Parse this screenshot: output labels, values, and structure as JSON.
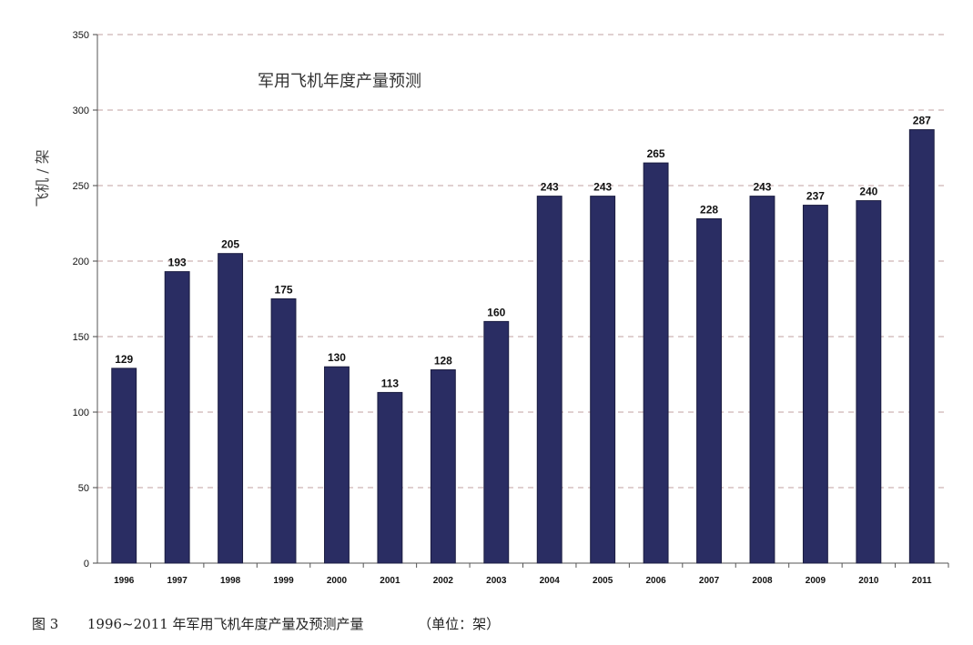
{
  "chart_data": {
    "type": "bar",
    "title": "军用飞机年度产量预测",
    "ylabel": "飞机 / 架",
    "xlabel": "",
    "categories": [
      "1996",
      "1997",
      "1998",
      "1999",
      "2000",
      "2001",
      "2002",
      "2003",
      "2004",
      "2005",
      "2006",
      "2007",
      "2008",
      "2009",
      "2010",
      "2011"
    ],
    "values": [
      129,
      193,
      205,
      175,
      130,
      113,
      128,
      160,
      243,
      243,
      265,
      228,
      243,
      237,
      240,
      287
    ],
    "data_labels": [
      "129",
      "193",
      "205",
      "175",
      "130",
      "113",
      "128",
      "160",
      "243",
      "243",
      "265",
      "228",
      "243",
      "237",
      "240",
      "287"
    ],
    "ylim": [
      0,
      350
    ],
    "yticks": [
      "0",
      "50",
      "100",
      "150",
      "200",
      "250",
      "300",
      "350"
    ],
    "grid": true,
    "bar_color": "#2a2d63",
    "grid_color": "#c0a0a0"
  },
  "caption": {
    "figure_no": "图 3",
    "text": "1996~2011 年军用飞机年度产量及预测产量",
    "unit": "（单位：架）"
  }
}
